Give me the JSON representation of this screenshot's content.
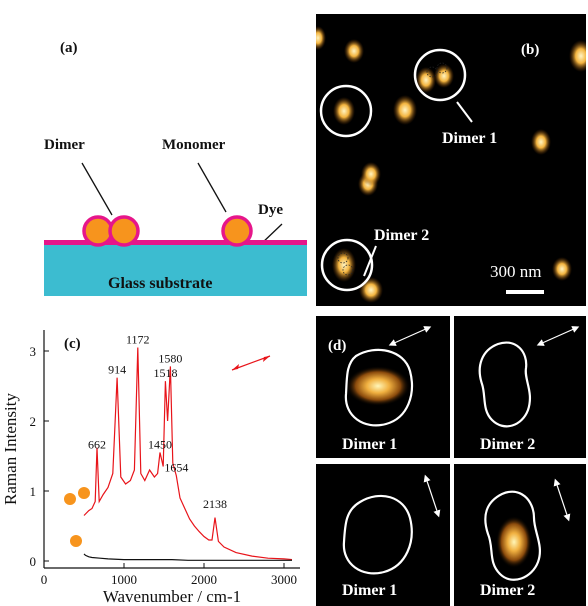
{
  "panel_a": {
    "label": "(a)",
    "dimer_label": "Dimer",
    "monomer_label": "Monomer",
    "dye_label": "Dye",
    "substrate_label": "Glass substrate",
    "colors": {
      "particle": "#f7941d",
      "dye": "#e6168a",
      "substrate": "#3cbcd0"
    }
  },
  "panel_b": {
    "label": "(b)",
    "dimer1_label": "Dimer 1",
    "dimer2_label": "Dimer 2",
    "scale_label": "300 nm"
  },
  "panel_d": {
    "label": "(d)",
    "tiles": [
      {
        "label": "Dimer 1",
        "bright": true
      },
      {
        "label": "Dimer 2",
        "bright": false
      },
      {
        "label": "Dimer 1",
        "bright": false
      },
      {
        "label": "Dimer 2",
        "bright": true
      }
    ]
  },
  "panel_c": {
    "label": "(c)",
    "chart_data": {
      "type": "line",
      "xlabel": "Wavenumber / cm-1",
      "ylabel": "Raman Intensity",
      "xlim": [
        0,
        3200
      ],
      "ylim": [
        -0.1,
        3.3
      ],
      "xticks": [
        "0",
        "1000",
        "2000",
        "3000"
      ],
      "yticks": [
        "0",
        "1",
        "2",
        "3"
      ],
      "peak_labels": [
        {
          "text": "662",
          "x": 662,
          "y": 1.55
        },
        {
          "text": "914",
          "x": 914,
          "y": 2.62
        },
        {
          "text": "1172",
          "x": 1172,
          "y": 3.05
        },
        {
          "text": "1518",
          "x": 1518,
          "y": 2.57
        },
        {
          "text": "1580",
          "x": 1580,
          "y": 2.78
        },
        {
          "text": "1450",
          "x": 1450,
          "y": 1.55
        },
        {
          "text": "1654",
          "x": 1654,
          "y": 1.22
        },
        {
          "text": "2138",
          "x": 2138,
          "y": 0.7
        }
      ],
      "series": [
        {
          "color": "#e8141a",
          "x": [
            500,
            560,
            600,
            640,
            662,
            690,
            740,
            800,
            860,
            914,
            960,
            1020,
            1080,
            1130,
            1172,
            1210,
            1260,
            1320,
            1380,
            1420,
            1450,
            1490,
            1518,
            1545,
            1580,
            1610,
            1654,
            1700,
            1760,
            1820,
            1880,
            1940,
            2000,
            2060,
            2100,
            2138,
            2180,
            2250,
            2400,
            2600,
            2800,
            3000,
            3100
          ],
          "y": [
            0.65,
            0.72,
            0.75,
            0.85,
            1.62,
            0.85,
            0.95,
            1.05,
            1.25,
            2.62,
            1.2,
            1.1,
            1.15,
            1.3,
            3.05,
            1.25,
            1.15,
            1.3,
            1.2,
            1.25,
            1.55,
            1.35,
            2.57,
            2.0,
            2.78,
            1.4,
            1.22,
            0.9,
            0.75,
            0.6,
            0.5,
            0.42,
            0.35,
            0.3,
            0.3,
            0.62,
            0.28,
            0.2,
            0.12,
            0.07,
            0.04,
            0.03,
            0.02
          ]
        },
        {
          "color": "#111111",
          "x": [
            500,
            520,
            560,
            600,
            700,
            800,
            1000,
            1200,
            1400,
            1600,
            1800,
            2000,
            2200,
            2500,
            2800,
            3100
          ],
          "y": [
            0.1,
            0.08,
            0.06,
            0.05,
            0.04,
            0.03,
            0.02,
            0.02,
            0.02,
            0.02,
            0.01,
            0.01,
            0.01,
            0.01,
            0.01,
            0.01
          ]
        }
      ]
    }
  }
}
